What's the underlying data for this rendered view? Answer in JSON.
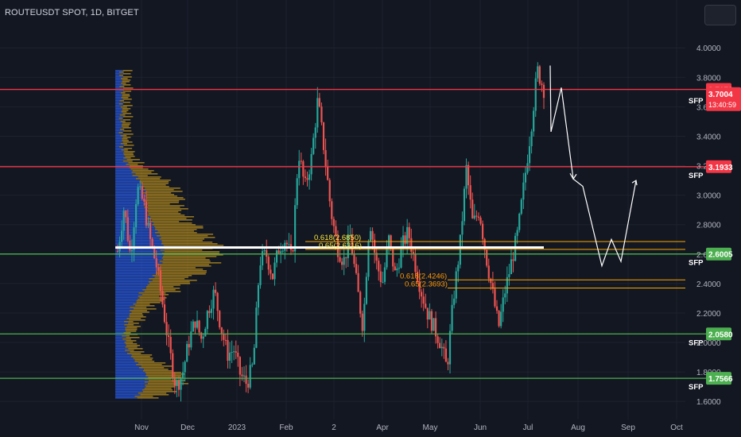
{
  "header": {
    "title": "ROUTEUSDT SPOT, 1D, BITGET"
  },
  "colors": {
    "background": "#131722",
    "grid": "#1e222d",
    "red_level": "#f23645",
    "green_level": "#4caf50",
    "fib_line": "#f7a600",
    "fib_text_yellow": "#ffeb3b",
    "fib_text_orange": "#ff9800",
    "candle_up": "#26a69a",
    "candle_down": "#ef5350",
    "volume_profile_blue": "#2962ff",
    "volume_profile_gold": "#c89a1c",
    "projection": "#ffffff"
  },
  "chart_data": {
    "type": "candlestick",
    "title": "ROUTEUSDT SPOT, 1D, BITGET",
    "x_tick_labels": [
      "Nov",
      "Dec",
      "2023",
      "Feb",
      "2",
      "Apr",
      "May",
      "Jun",
      "Jul",
      "Aug",
      "Sep",
      "Oct"
    ],
    "y_tick_labels": [
      "4.0000",
      "3.8000",
      "3.6000",
      "3.4000",
      "3.2000",
      "3.0000",
      "2.8000",
      "2.6000",
      "2.4000",
      "2.2000",
      "2.0000",
      "1.8000",
      "1.6000"
    ],
    "y_ticks": [
      4.0,
      3.8,
      3.6,
      3.4,
      3.2,
      3.0,
      2.8,
      2.6,
      2.4,
      2.2,
      2.0,
      1.8,
      1.6
    ],
    "ylim": [
      1.52,
      4.12
    ],
    "log_scale": false,
    "grid": true,
    "current_price": {
      "value": "3.7004",
      "countdown": "13:40:59"
    },
    "horizontal_levels": [
      {
        "price": 3.7178,
        "label": "3.7178",
        "color": "red",
        "note": ""
      },
      {
        "price": 3.1933,
        "label": "3.1933",
        "color": "red",
        "note": "SFP"
      },
      {
        "price": 2.6005,
        "label": "2.6005",
        "color": "green",
        "note": "SFP"
      },
      {
        "price": 2.058,
        "label": "2.0580",
        "color": "green",
        "note": "SFP"
      },
      {
        "price": 1.7566,
        "label": "1.7566",
        "color": "green",
        "note": "SFP"
      }
    ],
    "level_notes_extra": [
      {
        "price": 3.7004,
        "note": "SFP"
      }
    ],
    "fib_levels": [
      {
        "ratio_label": "0.618",
        "value": 2.685,
        "text": "0.618(2.6850)",
        "color": "yellow"
      },
      {
        "ratio_label": "0.65",
        "value": 2.6316,
        "text": "0.65(2.6316)",
        "color": "yellow"
      },
      {
        "ratio_label": "0.618",
        "value": 2.4246,
        "text": "0.618(2.4246)",
        "color": "orange"
      },
      {
        "ratio_label": "0.65",
        "value": 2.3693,
        "text": "0.65(2.3693)",
        "color": "orange"
      }
    ],
    "white_level": 2.645,
    "volume_profile": true,
    "projection_path": [
      3.88,
      3.43,
      3.73,
      3.11,
      3.06,
      2.52,
      2.7,
      2.55,
      3.1
    ],
    "price_path": [
      2.62,
      2.92,
      2.58,
      3.05,
      2.95,
      2.7,
      2.52,
      2.25,
      1.95,
      1.7,
      1.78,
      2.0,
      2.15,
      2.02,
      2.22,
      2.35,
      2.1,
      1.92,
      1.95,
      1.78,
      1.72,
      1.85,
      2.55,
      2.6,
      2.45,
      2.65,
      2.7,
      2.55,
      3.3,
      3.05,
      3.25,
      3.65,
      3.3,
      2.9,
      2.65,
      2.55,
      2.72,
      2.4,
      2.1,
      2.85,
      2.55,
      2.4,
      2.7,
      2.45,
      2.65,
      2.75,
      2.55,
      2.35,
      2.2,
      2.1,
      2.0,
      1.82,
      2.3,
      2.65,
      3.18,
      2.8,
      2.9,
      2.6,
      2.35,
      2.1,
      2.35,
      2.55,
      2.75,
      3.1,
      3.45,
      3.85,
      3.72
    ]
  }
}
